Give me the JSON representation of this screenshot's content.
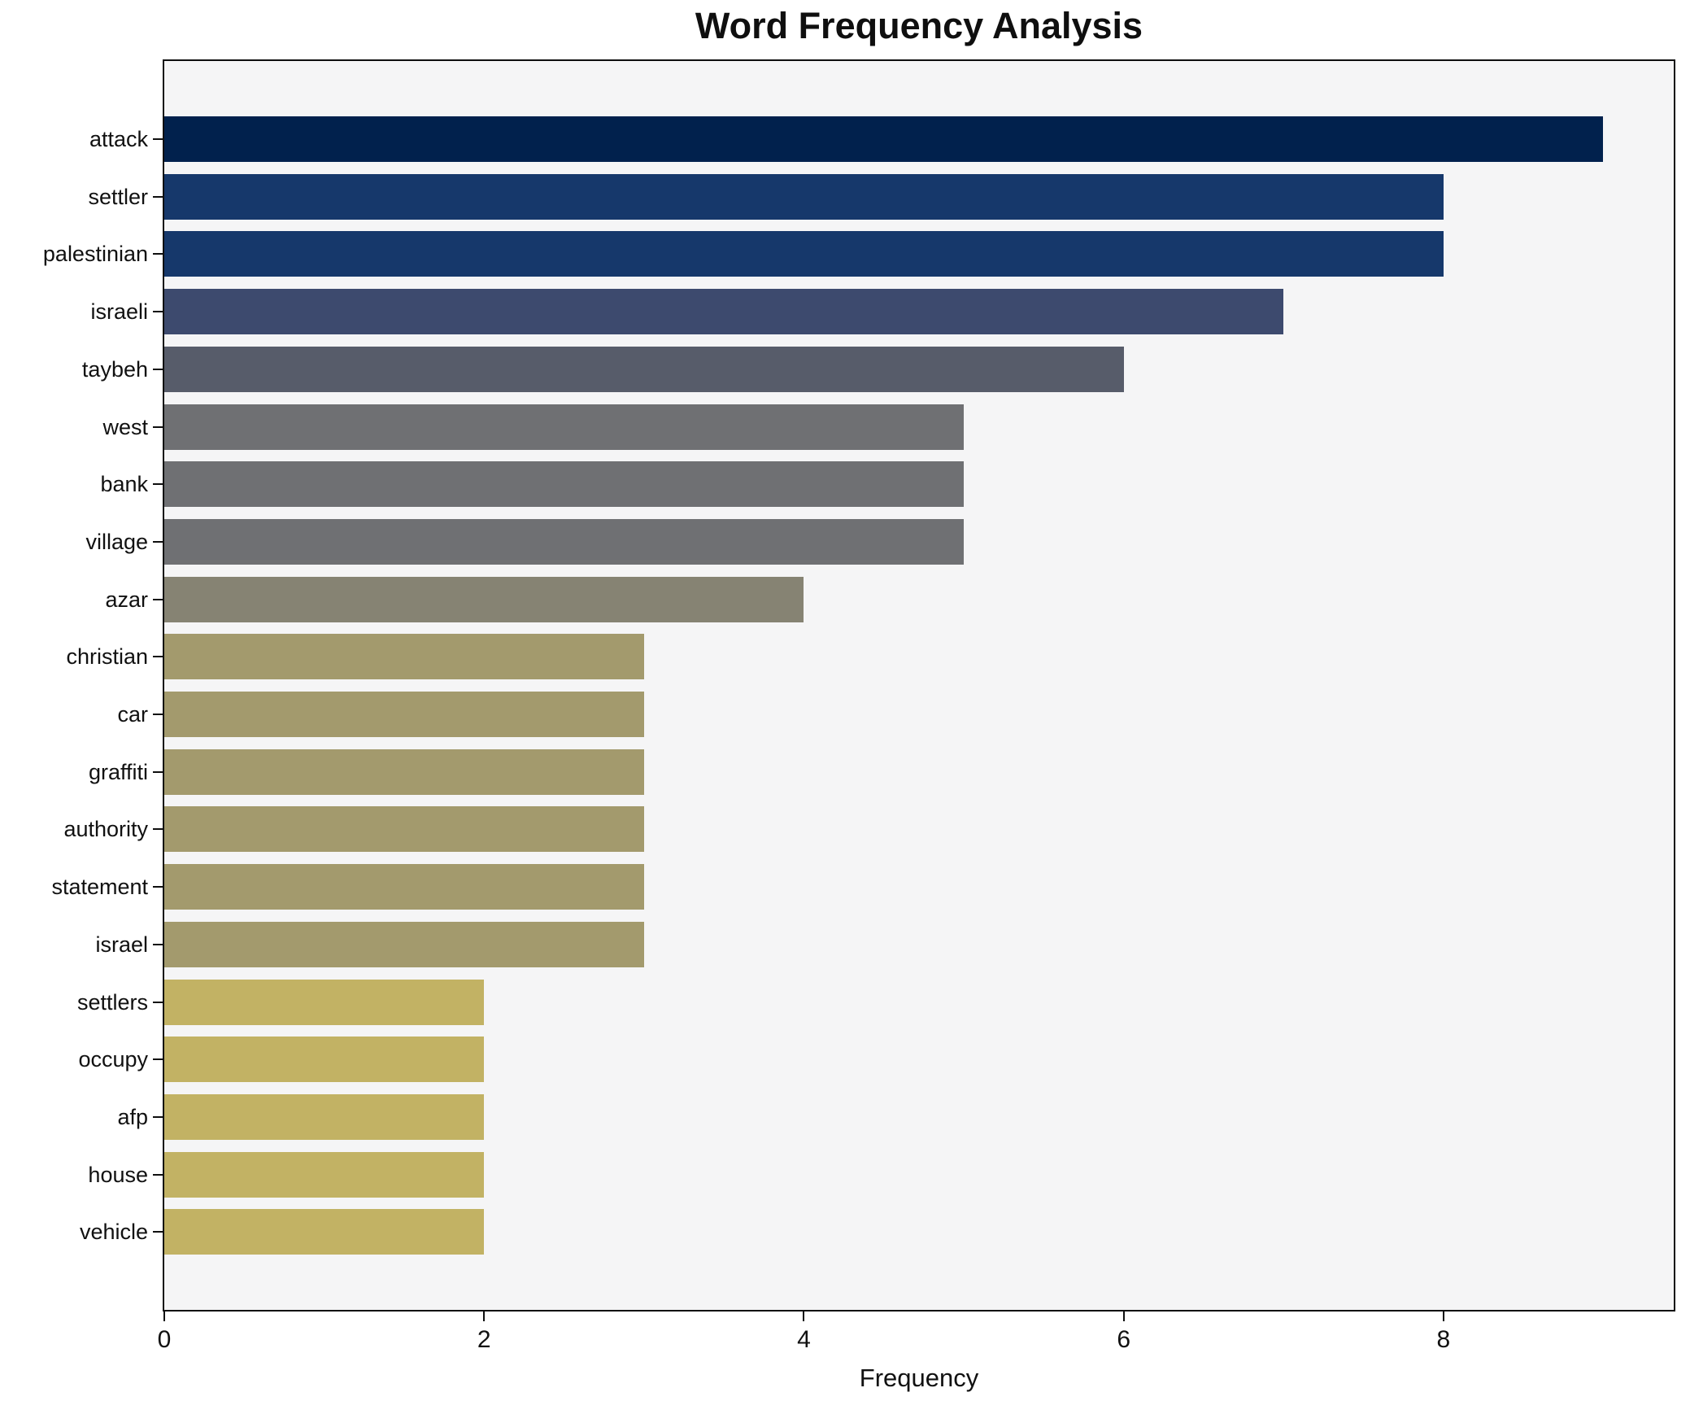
{
  "title": "Word Frequency Analysis",
  "axis": {
    "xlabel": "Frequency",
    "ylabel": ""
  },
  "colors": {
    "figure_bg": "#ffffff",
    "plot_bg": "#f5f5f6",
    "spine": "#0f0f0f",
    "text": "#111111"
  },
  "chart_data": {
    "type": "bar",
    "orientation": "horizontal",
    "title": "Word Frequency Analysis",
    "xlabel": "Frequency",
    "ylabel": "",
    "grid": false,
    "legend": false,
    "categories": [
      "attack",
      "settler",
      "palestinian",
      "israeli",
      "taybeh",
      "west",
      "bank",
      "village",
      "azar",
      "christian",
      "car",
      "graffiti",
      "authority",
      "statement",
      "israel",
      "settlers",
      "occupy",
      "afp",
      "house",
      "vehicle"
    ],
    "values": [
      9,
      8,
      8,
      7,
      6,
      5,
      5,
      5,
      4,
      3,
      3,
      3,
      3,
      3,
      3,
      2,
      2,
      2,
      2,
      2
    ],
    "bar_colors": [
      "#01214d",
      "#16386b",
      "#16386b",
      "#3d4a6e",
      "#575c6a",
      "#6f7073",
      "#6f7073",
      "#6f7073",
      "#868373",
      "#a39a6d",
      "#a39a6d",
      "#a39a6d",
      "#a39a6d",
      "#a39a6d",
      "#a39a6d",
      "#c2b264",
      "#c2b264",
      "#c2b264",
      "#c2b264",
      "#c2b264"
    ],
    "xlim": [
      0,
      9.44
    ],
    "xticks": [
      0,
      2,
      4,
      6,
      8
    ],
    "colormap_hint": "cividis, darkest for highest frequency"
  }
}
